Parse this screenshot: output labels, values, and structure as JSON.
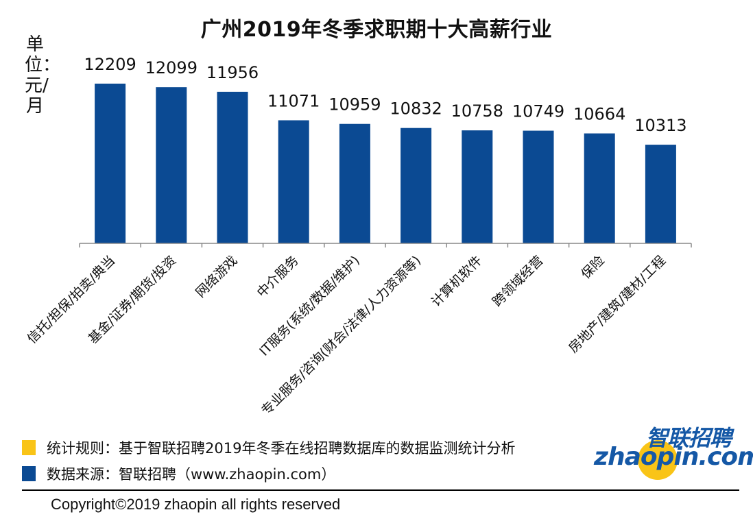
{
  "title": "广州2019年冬季求职期十大高薪行业",
  "unit_label": "单位：元/月",
  "chart_data": {
    "type": "bar",
    "title": "广州2019年冬季求职期十大高薪行业",
    "ylabel": "单位：元/月",
    "categories": [
      "信托/担保/拍卖/典当",
      "基金/证券/期货/投资",
      "网络游戏",
      "中介服务",
      "IT服务(系统/数据/维护)",
      "专业服务/咨询(财会/法律/人力资源等)",
      "计算机软件",
      "跨领域经营",
      "保险",
      "房地产/建筑/建材/工程"
    ],
    "values": [
      12209,
      12099,
      11956,
      11071,
      10959,
      10832,
      10758,
      10749,
      10664,
      10313
    ],
    "ylim": [
      0,
      12209
    ],
    "grid": false,
    "legend": false,
    "bar_color": "#0b4a93"
  },
  "legend": [
    {
      "text": "统计规则：基于智联招聘2019年冬季在线招聘数据库的数据监测统计分析",
      "color": "#f9c417"
    },
    {
      "text": "数据来源：智联招聘（www.zhaopin.com）",
      "color": "#0b4a93"
    }
  ],
  "copyright": "Copyright©2019 zhaopin all rights reserved",
  "logo": {
    "cn": "智联招聘",
    "en": "zhaopin.com",
    "ball_color": "#f9c417",
    "text_color": "#1558a6"
  }
}
